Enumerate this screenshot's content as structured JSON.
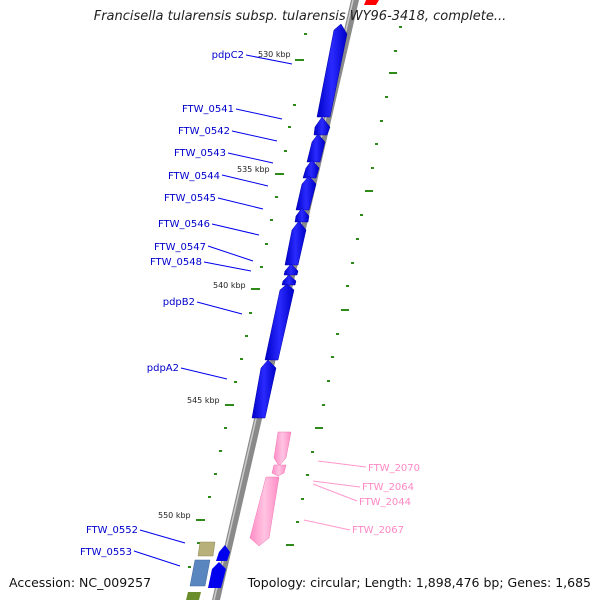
{
  "title": "Francisella tularensis subsp. tularensis WY96-3418, complete...",
  "footer": {
    "accession": "Accession: NC_009257",
    "summary": "Topology: circular; Length: 1,898,476 bp; Genes: 1,685"
  },
  "scale_labels": [
    "530 kbp",
    "535 kbp",
    "540 kbp",
    "545 kbp",
    "550 kbp"
  ],
  "forward_genes": [
    "pdpC2",
    "FTW_0541",
    "FTW_0542",
    "FTW_0543",
    "FTW_0544",
    "FTW_0545",
    "FTW_0546",
    "FTW_0547",
    "FTW_0548",
    "pdpB2",
    "pdpA2",
    "FTW_0552",
    "FTW_0553"
  ],
  "reverse_genes": [
    "FTW_2070",
    "FTW_2064",
    "FTW_2044",
    "FTW_2067"
  ],
  "colors": {
    "forward_gene": "#0000ee",
    "reverse_gene": "#ff99cc",
    "backbone": "#888888",
    "ticks": "#2e8b1a",
    "highlight": "#ff0000"
  }
}
